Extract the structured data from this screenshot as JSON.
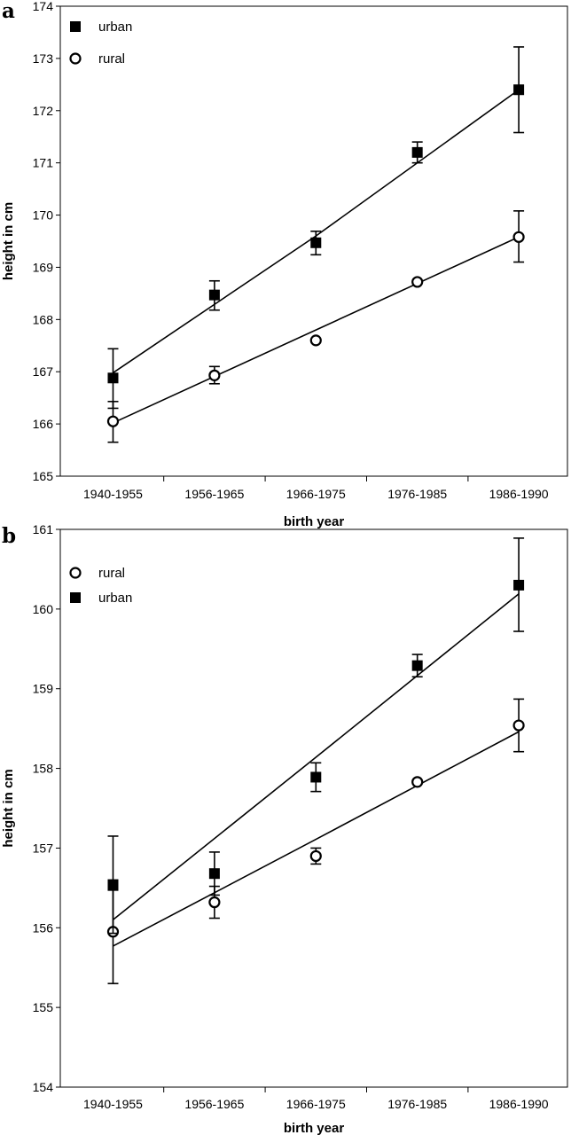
{
  "chart_data": [
    {
      "type": "scatter",
      "panel_label": "a",
      "xlabel": "birth year",
      "ylabel": "height in cm",
      "categories": [
        "1940-1955",
        "1956-1965",
        "1966-1975",
        "1976-1985",
        "1986-1990"
      ],
      "ylim": [
        165,
        174
      ],
      "yticks": [
        165,
        166,
        167,
        168,
        169,
        170,
        171,
        172,
        173,
        174
      ],
      "legend_position": "top-left",
      "series": [
        {
          "name": "urban",
          "marker": "filled-square",
          "values": [
            166.88,
            168.47,
            169.47,
            171.2,
            172.4
          ],
          "err_lo": [
            166.3,
            168.18,
            169.24,
            171.0,
            171.58
          ],
          "err_hi": [
            167.44,
            168.74,
            169.69,
            171.4,
            173.22
          ],
          "fit_line": [
            166.98,
            169.6,
            172.4
          ]
        },
        {
          "name": "rural",
          "marker": "open-circle",
          "values": [
            166.05,
            166.93,
            167.6,
            168.72,
            169.58
          ],
          "err_lo": [
            165.65,
            166.77,
            167.6,
            168.72,
            169.1
          ],
          "err_hi": [
            166.43,
            167.1,
            167.6,
            168.72,
            170.08
          ],
          "fit_line": [
            166.02,
            167.8,
            169.58
          ]
        }
      ]
    },
    {
      "type": "scatter",
      "panel_label": "b",
      "xlabel": "birth year",
      "ylabel": "height in cm",
      "categories": [
        "1940-1955",
        "1956-1965",
        "1966-1975",
        "1976-1985",
        "1986-1990"
      ],
      "ylim": [
        154,
        161
      ],
      "yticks": [
        154,
        155,
        156,
        157,
        158,
        159,
        160,
        161
      ],
      "legend_position": "top-left",
      "series": [
        {
          "name": "rural",
          "marker": "open-circle",
          "values": [
            155.95,
            156.32,
            156.9,
            157.83,
            158.54
          ],
          "err_lo": [
            155.3,
            156.12,
            156.8,
            157.83,
            158.21
          ],
          "err_hi": [
            156.6,
            156.52,
            157.0,
            157.83,
            158.87
          ],
          "fit_line": [
            155.77,
            157.11,
            158.46
          ]
        },
        {
          "name": "urban",
          "marker": "filled-square",
          "values": [
            156.53,
            156.68,
            157.89,
            159.29,
            160.3
          ],
          "err_lo": [
            155.93,
            156.41,
            157.71,
            159.15,
            159.72
          ],
          "err_hi": [
            157.15,
            156.95,
            158.07,
            159.43,
            160.89
          ],
          "fit_line": [
            156.1,
            158.14,
            160.19
          ]
        }
      ]
    }
  ]
}
